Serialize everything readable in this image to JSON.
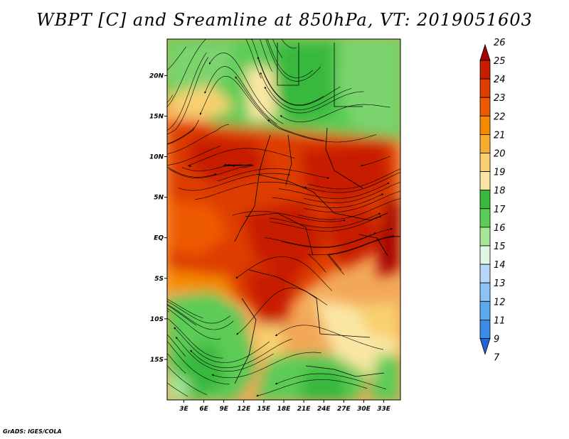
{
  "chart_data": {
    "type": "heatmap",
    "title": "WBPT [C] and Sreamline at 850hPa, VT: 2019051603",
    "variable": "WBPT [C]",
    "overlay": "streamlines",
    "level": "850hPa",
    "valid_time": "2019051603",
    "x_ticks": [
      "3E",
      "6E",
      "9E",
      "12E",
      "15E",
      "18E",
      "21E",
      "24E",
      "27E",
      "30E",
      "33E"
    ],
    "x_values": [
      3,
      6,
      9,
      12,
      15,
      18,
      21,
      24,
      27,
      30,
      33
    ],
    "y_ticks": [
      "20N",
      "15N",
      "10N",
      "5N",
      "EQ",
      "5S",
      "10S",
      "15S"
    ],
    "y_values": [
      20,
      15,
      10,
      5,
      0,
      -5,
      -10,
      -15
    ],
    "xlim": [
      0.5,
      35.5
    ],
    "ylim": [
      -20,
      24.5
    ],
    "colorbar": {
      "levels": [
        "26",
        "25",
        "24",
        "23",
        "22",
        "21",
        "20",
        "19",
        "18",
        "17",
        "16",
        "15",
        "14",
        "13",
        "12",
        "11",
        "9",
        "7"
      ],
      "colors": [
        "#a50000",
        "#c81e00",
        "#de3c00",
        "#ee5a00",
        "#f58a00",
        "#f5ad2f",
        "#f8d070",
        "#fae6a3",
        "#38b83c",
        "#5ccc56",
        "#a6e696",
        "#e2f7e2",
        "#b4d7fa",
        "#8cc2f5",
        "#5ea8ee",
        "#3a8ae6",
        "#2064d8"
      ],
      "extend": "both"
    },
    "annotations": []
  },
  "footer": {
    "credit": "GrADS: IGES/COLA"
  }
}
